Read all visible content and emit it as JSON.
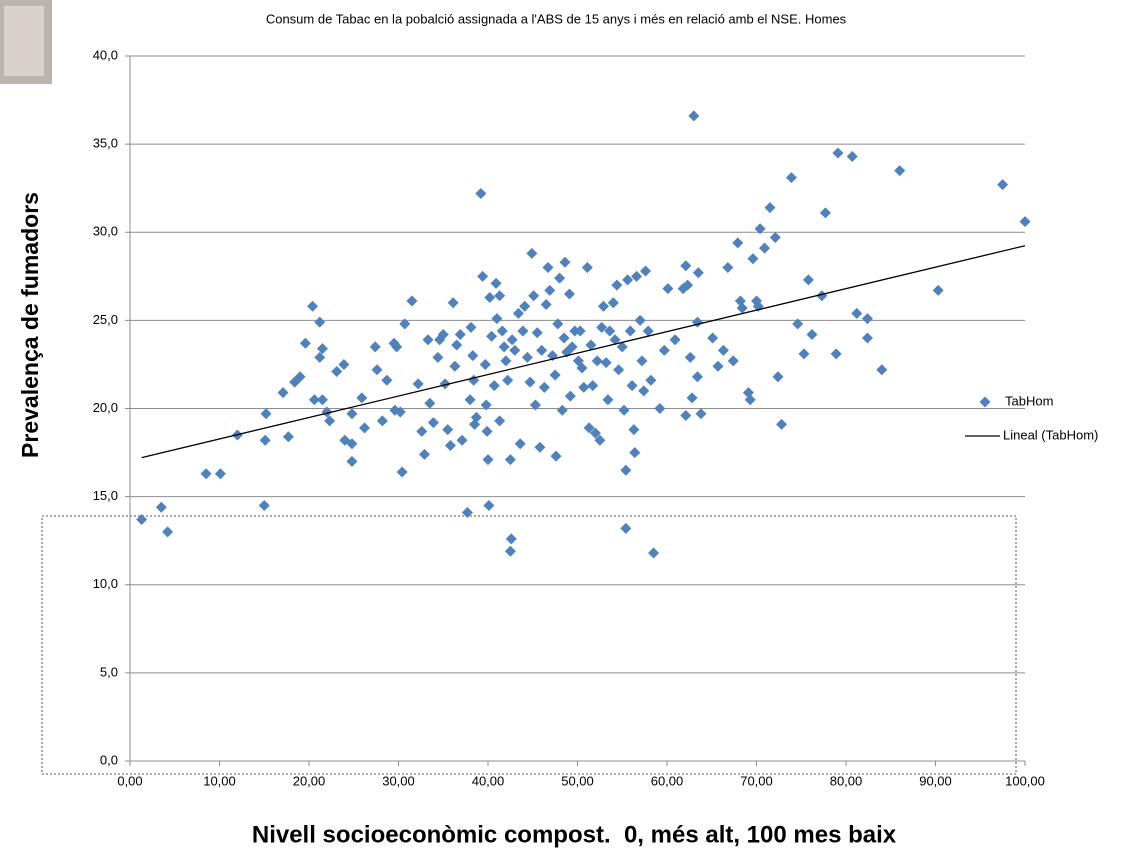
{
  "chart_data": {
    "type": "scatter",
    "title": "Consum de Tabac en la pobalció assignada a l'ABS de 15 anys i més en relació amb el NSE. Homes",
    "x_label": "Nivell socioeconòmic compost.  0, més alt, 100 mes baix",
    "y_label": "Prevalença de fumadors",
    "xlim": [
      0,
      100
    ],
    "ylim": [
      0,
      40
    ],
    "grid": true,
    "legend": "right",
    "xticks": [
      {
        "value": 0,
        "label": "0,00"
      },
      {
        "value": 10,
        "label": "10,00"
      },
      {
        "value": 20,
        "label": "20,00"
      },
      {
        "value": 30,
        "label": "30,00"
      },
      {
        "value": 40,
        "label": "40,00"
      },
      {
        "value": 50,
        "label": "50,00"
      },
      {
        "value": 60,
        "label": "60,00"
      },
      {
        "value": 70,
        "label": "70,00"
      },
      {
        "value": 80,
        "label": "80,00"
      },
      {
        "value": 90,
        "label": "90,00"
      },
      {
        "value": 100,
        "label": "100,00"
      }
    ],
    "yticks": [
      {
        "value": 0,
        "label": "0,0"
      },
      {
        "value": 5,
        "label": "5,0"
      },
      {
        "value": 10,
        "label": "10,0"
      },
      {
        "value": 15,
        "label": "15,0"
      },
      {
        "value": 20,
        "label": "20,0"
      },
      {
        "value": 25,
        "label": "25,0"
      },
      {
        "value": 30,
        "label": "30,0"
      },
      {
        "value": 35,
        "label": "35,0"
      },
      {
        "value": 40,
        "label": "40,0"
      }
    ],
    "series": [
      {
        "name": "TabHom",
        "color": "#4f81bd",
        "x": [
          1.3,
          3.5,
          4.2,
          8.5,
          10.1,
          12.0,
          15.0,
          15.2,
          15.1,
          17.1,
          17.7,
          18.4,
          19.0,
          19.6,
          20.4,
          20.6,
          21.2,
          21.2,
          21.5,
          21.5,
          22.0,
          22.3,
          23.1,
          23.9,
          24.0,
          24.8,
          24.8,
          24.8,
          25.9,
          26.2,
          27.4,
          27.6,
          28.2,
          28.7,
          29.5,
          29.6,
          29.8,
          30.2,
          30.4,
          30.7,
          31.5,
          32.2,
          32.6,
          32.9,
          33.3,
          33.5,
          33.9,
          34.4,
          34.6,
          35.0,
          35.2,
          35.5,
          35.8,
          36.1,
          36.3,
          36.5,
          36.9,
          37.1,
          37.7,
          38.0,
          38.1,
          38.3,
          38.4,
          38.5,
          38.7,
          39.2,
          39.4,
          39.7,
          39.8,
          39.9,
          40.0,
          40.1,
          40.2,
          40.4,
          40.7,
          40.9,
          41.0,
          41.3,
          41.3,
          41.6,
          41.8,
          42.0,
          42.2,
          42.5,
          42.6,
          42.5,
          42.7,
          43.0,
          43.4,
          43.6,
          43.9,
          44.1,
          44.4,
          44.7,
          44.9,
          45.1,
          45.3,
          45.5,
          45.8,
          46.0,
          46.3,
          46.5,
          46.7,
          46.9,
          47.2,
          47.5,
          47.6,
          47.8,
          48.0,
          48.3,
          48.5,
          48.6,
          48.8,
          49.1,
          49.2,
          49.4,
          49.7,
          50.1,
          50.3,
          50.5,
          50.7,
          51.1,
          51.3,
          51.5,
          51.7,
          52.0,
          52.2,
          52.5,
          52.7,
          52.9,
          53.2,
          53.4,
          53.6,
          54.0,
          54.2,
          54.4,
          54.6,
          55.0,
          55.2,
          55.4,
          55.4,
          55.6,
          55.9,
          56.1,
          56.3,
          56.4,
          56.6,
          57.0,
          57.2,
          57.4,
          57.6,
          57.9,
          58.2,
          58.5,
          59.2,
          59.7,
          60.1,
          60.9,
          61.8,
          62.1,
          62.3,
          62.1,
          62.6,
          62.8,
          63.0,
          63.4,
          63.4,
          63.5,
          63.8,
          65.1,
          65.7,
          66.3,
          66.8,
          67.4,
          67.9,
          68.2,
          68.4,
          69.1,
          69.3,
          69.6,
          70.0,
          70.2,
          70.4,
          70.9,
          71.5,
          72.1,
          72.4,
          72.8,
          73.9,
          74.6,
          75.3,
          75.8,
          76.2,
          77.3,
          77.7,
          78.9,
          79.1,
          80.7,
          81.2,
          82.4,
          82.4,
          84.0,
          86.0,
          90.3,
          97.5,
          100.0
        ],
        "values": [
          13.7,
          14.4,
          13.0,
          16.3,
          16.3,
          18.5,
          14.5,
          19.7,
          18.2,
          20.9,
          18.4,
          21.5,
          21.8,
          23.7,
          25.8,
          20.5,
          24.9,
          22.9,
          23.4,
          20.5,
          19.8,
          19.3,
          22.1,
          22.5,
          18.2,
          19.7,
          18.0,
          17.0,
          20.6,
          18.9,
          23.5,
          22.2,
          19.3,
          21.6,
          23.7,
          19.9,
          23.5,
          19.8,
          16.4,
          24.8,
          26.1,
          21.4,
          18.7,
          17.4,
          23.9,
          20.3,
          19.2,
          22.9,
          23.9,
          24.2,
          21.4,
          18.8,
          17.9,
          26.0,
          22.4,
          23.6,
          24.2,
          18.2,
          14.1,
          20.5,
          24.6,
          23.0,
          21.6,
          19.1,
          19.5,
          32.2,
          27.5,
          22.5,
          20.2,
          18.7,
          17.1,
          14.5,
          26.3,
          24.1,
          21.3,
          27.1,
          25.1,
          26.4,
          19.3,
          24.4,
          23.5,
          22.7,
          21.6,
          17.1,
          12.6,
          11.9,
          23.9,
          23.3,
          25.4,
          18.0,
          24.4,
          25.8,
          22.9,
          21.5,
          28.8,
          26.4,
          20.2,
          24.3,
          17.8,
          23.3,
          21.2,
          25.9,
          28.0,
          26.7,
          23.0,
          21.9,
          17.3,
          24.8,
          27.4,
          19.9,
          24.0,
          28.3,
          23.2,
          26.5,
          20.7,
          23.5,
          24.4,
          22.7,
          24.4,
          22.3,
          21.2,
          28.0,
          18.9,
          23.6,
          21.3,
          18.6,
          22.7,
          18.2,
          24.6,
          25.8,
          22.6,
          20.5,
          24.4,
          26.0,
          23.9,
          27.0,
          22.2,
          23.5,
          19.9,
          16.5,
          13.2,
          27.3,
          24.4,
          21.3,
          18.8,
          17.5,
          27.5,
          25.0,
          22.7,
          21.0,
          27.8,
          24.4,
          21.6,
          11.8,
          20.0,
          23.3,
          26.8,
          23.9,
          26.8,
          28.1,
          27.0,
          19.6,
          22.9,
          20.6,
          36.6,
          24.9,
          21.8,
          27.7,
          19.7,
          24.0,
          22.4,
          23.3,
          28.0,
          22.7,
          29.4,
          26.1,
          25.7,
          20.9,
          20.5,
          28.5,
          26.1,
          25.8,
          30.2,
          29.1,
          31.4,
          29.7,
          21.8,
          19.1,
          33.1,
          24.8,
          23.1,
          27.3,
          24.2,
          26.4,
          31.1,
          23.1,
          34.5,
          34.3,
          25.4,
          24.0,
          25.1,
          22.2,
          33.5,
          26.7,
          32.7,
          30.6
        ]
      }
    ],
    "trendline": {
      "name": "Lineal (TabHom)",
      "color": "#000000"
    }
  }
}
